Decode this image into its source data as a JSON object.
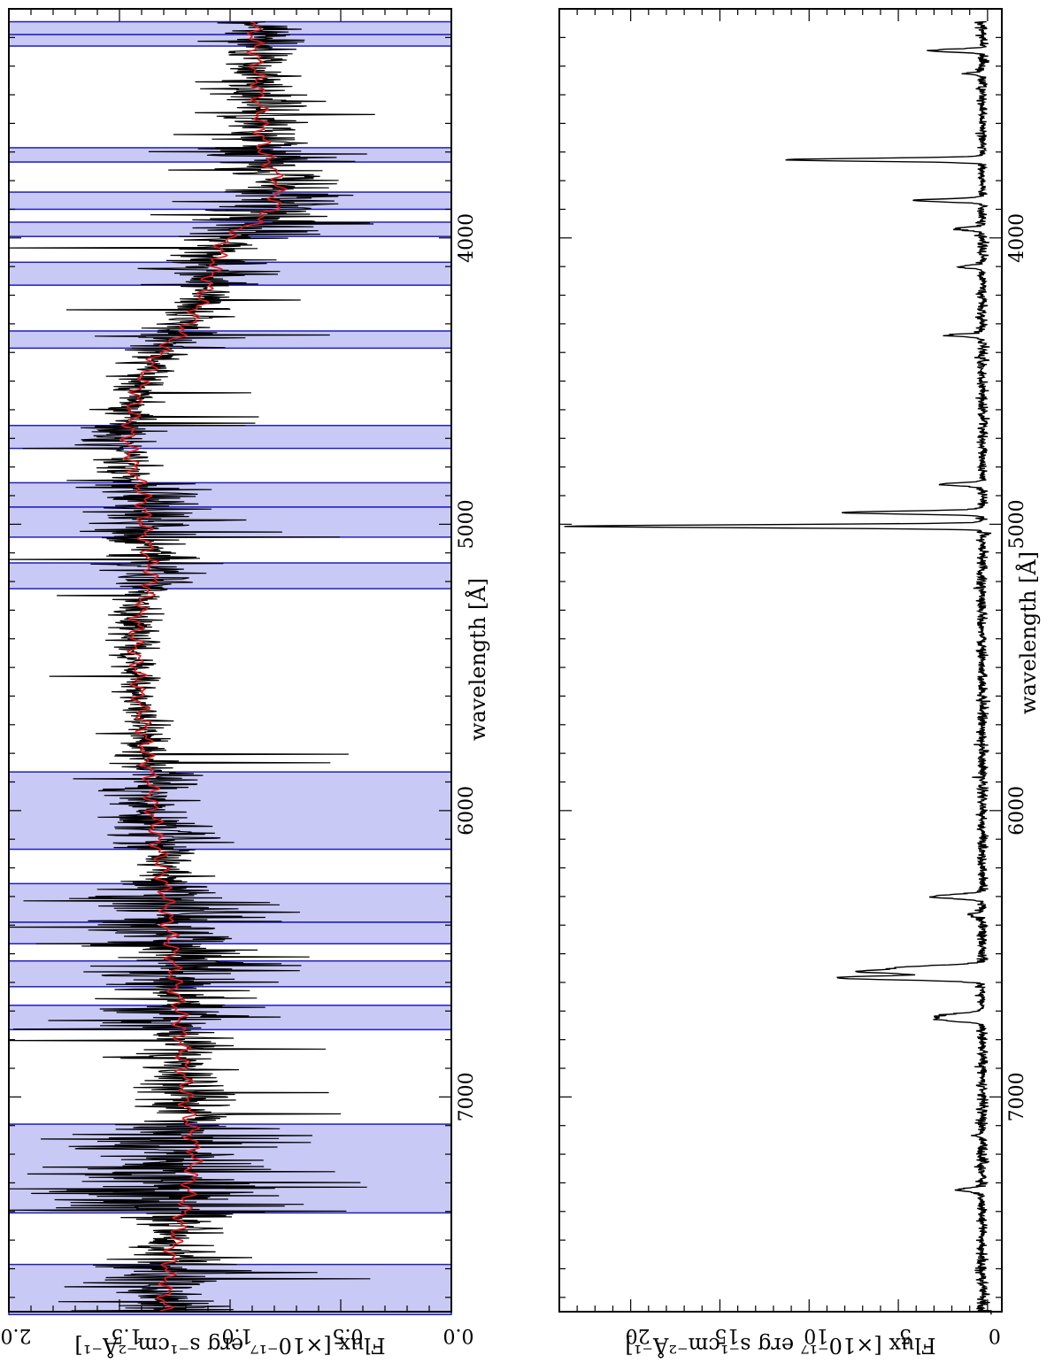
{
  "figure": {
    "orientation": "rotated 90 degrees clockwise (wavelength runs top-to-bottom, flux increases leftward)"
  },
  "chart_data": [
    {
      "type": "line",
      "xlabel": "wavelength [Å]",
      "ylabel": "Flux [×10⁻¹⁷ erg s⁻¹cm⁻²Å⁻¹]",
      "xlim": [
        3200,
        7750
      ],
      "ylim": [
        0.0,
        2.0
      ],
      "x_ticks": [
        {
          "value": 4000,
          "label": "4000"
        },
        {
          "value": 5000,
          "label": "5000"
        },
        {
          "value": 6000,
          "label": "6000"
        },
        {
          "value": 7000,
          "label": "7000"
        }
      ],
      "y_ticks": [
        {
          "value": 0.0,
          "label": "0.0"
        },
        {
          "value": 0.5,
          "label": "0.5"
        },
        {
          "value": 1.0,
          "label": "1.0"
        },
        {
          "value": 1.5,
          "label": "1.5"
        },
        {
          "value": 2.0,
          "label": "2.0"
        }
      ],
      "shaded_regions": [
        [
          3245,
          3290
        ],
        [
          3290,
          3330
        ],
        [
          3685,
          3735
        ],
        [
          3840,
          3900
        ],
        [
          3945,
          3995
        ],
        [
          4085,
          4165
        ],
        [
          4325,
          4385
        ],
        [
          4655,
          4735
        ],
        [
          4855,
          4940
        ],
        [
          4940,
          5045
        ],
        [
          5135,
          5225
        ],
        [
          5865,
          6135
        ],
        [
          6255,
          6390
        ],
        [
          6390,
          6465
        ],
        [
          6525,
          6615
        ],
        [
          6680,
          6765
        ],
        [
          7095,
          7405
        ],
        [
          7585,
          7760
        ]
      ],
      "series": [
        {
          "color": "#000000",
          "style": "observed spectrum (noisy)",
          "x": [
            3245,
            3300,
            3400,
            3500,
            3600,
            3700,
            3800,
            3900,
            3950,
            4000,
            4100,
            4200,
            4300,
            4400,
            4500,
            4600,
            4700,
            4800,
            4900,
            5000,
            5100,
            5200,
            5300,
            5400,
            5500,
            5600,
            5700,
            5800,
            5900,
            6000,
            6100,
            6200,
            6300,
            6400,
            6500,
            6600,
            6700,
            6800,
            6900,
            7000,
            7100,
            7200,
            7300,
            7400,
            7500,
            7600,
            7750
          ],
          "y": [
            0.88,
            0.88,
            0.87,
            0.86,
            0.85,
            0.86,
            0.8,
            0.83,
            0.85,
            1.0,
            1.06,
            1.12,
            1.18,
            1.32,
            1.4,
            1.45,
            1.48,
            1.45,
            1.38,
            1.4,
            1.38,
            1.34,
            1.42,
            1.45,
            1.43,
            1.42,
            1.4,
            1.39,
            1.36,
            1.35,
            1.32,
            1.3,
            1.28,
            1.27,
            1.25,
            1.24,
            1.22,
            1.22,
            1.21,
            1.2,
            1.18,
            1.15,
            1.18,
            1.22,
            1.26,
            1.28,
            1.3
          ],
          "noise_amplitude": [
            0.08,
            0.08,
            0.1,
            0.12,
            0.12,
            0.12,
            0.12,
            0.14,
            0.14,
            0.1,
            0.1,
            0.1,
            0.08,
            0.07,
            0.07,
            0.07,
            0.07,
            0.08,
            0.12,
            0.1,
            0.08,
            0.08,
            0.07,
            0.06,
            0.05,
            0.05,
            0.06,
            0.06,
            0.08,
            0.08,
            0.08,
            0.06,
            0.12,
            0.16,
            0.16,
            0.12,
            0.14,
            0.1,
            0.12,
            0.12,
            0.14,
            0.18,
            0.24,
            0.22,
            0.1,
            0.12,
            0.12
          ]
        },
        {
          "color": "#e31a1c",
          "style": "model fit (smooth)",
          "x": [
            3245,
            3300,
            3400,
            3500,
            3600,
            3700,
            3800,
            3900,
            3950,
            4000,
            4100,
            4200,
            4300,
            4400,
            4500,
            4600,
            4700,
            4800,
            4900,
            5000,
            5100,
            5200,
            5300,
            5400,
            5500,
            5600,
            5700,
            5800,
            5900,
            6000,
            6100,
            6200,
            6300,
            6400,
            6500,
            6600,
            6700,
            6800,
            6900,
            7000,
            7100,
            7200,
            7300,
            7400,
            7500,
            7600,
            7750
          ],
          "y": [
            0.9,
            0.89,
            0.88,
            0.87,
            0.86,
            0.85,
            0.78,
            0.8,
            0.9,
            1.02,
            1.07,
            1.12,
            1.18,
            1.32,
            1.4,
            1.44,
            1.46,
            1.44,
            1.39,
            1.39,
            1.37,
            1.35,
            1.41,
            1.43,
            1.42,
            1.41,
            1.39,
            1.38,
            1.36,
            1.35,
            1.33,
            1.31,
            1.29,
            1.28,
            1.26,
            1.25,
            1.23,
            1.22,
            1.21,
            1.2,
            1.18,
            1.16,
            1.18,
            1.21,
            1.25,
            1.28,
            1.3
          ]
        }
      ]
    },
    {
      "type": "line",
      "xlabel": "wavelength [Å]",
      "ylabel": "Flux [×10⁻¹⁷ erg s⁻¹cm⁻²Å⁻¹]",
      "xlim": [
        3200,
        7750
      ],
      "ylim": [
        -0.8,
        24.0
      ],
      "x_ticks": [
        {
          "value": 4000,
          "label": "4000"
        },
        {
          "value": 5000,
          "label": "5000"
        },
        {
          "value": 6000,
          "label": "6000"
        },
        {
          "value": 7000,
          "label": "7000"
        }
      ],
      "y_ticks": [
        {
          "value": 0,
          "label": "0"
        },
        {
          "value": 5,
          "label": "5"
        },
        {
          "value": 10,
          "label": "10"
        },
        {
          "value": 15,
          "label": "15"
        },
        {
          "value": 20,
          "label": "20"
        }
      ],
      "series": [
        {
          "color": "#000000",
          "style": "emission-line spectrum",
          "continuum": 0.3,
          "noise_amplitude": 0.3,
          "lines": [
            {
              "x": 3346,
              "peak": 2.9,
              "width": 5
            },
            {
              "x": 3426,
              "peak": 0.8,
              "width": 4
            },
            {
              "x": 3727,
              "peak": 11.2,
              "width": 5
            },
            {
              "x": 3869,
              "peak": 3.9,
              "width": 5
            },
            {
              "x": 3968,
              "peak": 1.6,
              "width": 5
            },
            {
              "x": 4101,
              "peak": 1.3,
              "width": 5
            },
            {
              "x": 4340,
              "peak": 1.7,
              "width": 5
            },
            {
              "x": 4861,
              "peak": 2.3,
              "width": 5
            },
            {
              "x": 4959,
              "peak": 8.0,
              "width": 5
            },
            {
              "x": 5007,
              "peak": 23.5,
              "width": 5
            },
            {
              "x": 6300,
              "peak": 2.9,
              "width": 7
            },
            {
              "x": 6364,
              "peak": 0.8,
              "width": 5
            },
            {
              "x": 6548,
              "peak": 4.5,
              "width": 7
            },
            {
              "x": 6563,
              "peak": 6.5,
              "width": 6
            },
            {
              "x": 6584,
              "peak": 8.2,
              "width": 7
            },
            {
              "x": 6716,
              "peak": 2.3,
              "width": 8
            },
            {
              "x": 6731,
              "peak": 1.9,
              "width": 7
            },
            {
              "x": 7325,
              "peak": 1.4,
              "width": 6
            },
            {
              "x": 7136,
              "peak": 0.5,
              "width": 5
            }
          ]
        }
      ]
    }
  ]
}
